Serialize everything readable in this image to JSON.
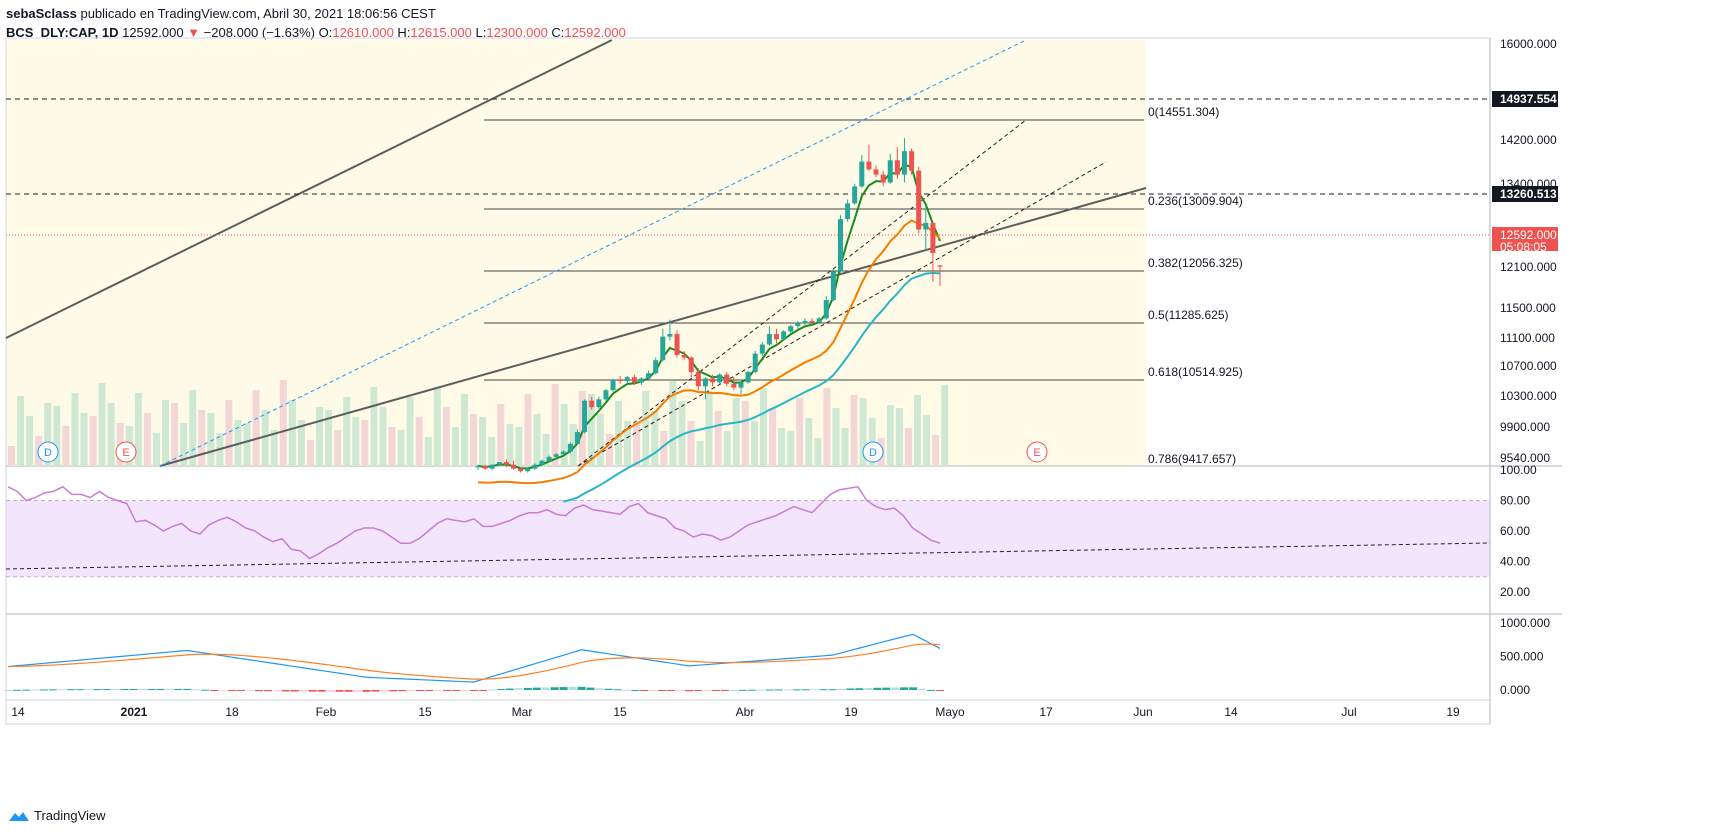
{
  "header": {
    "author": "sebaSclass",
    "published": "publicado en TradingView.com, Abril 30, 2021 18:06:56 CEST",
    "symbol": "BCS_DLY:CAP, 1D",
    "last": "12592.000",
    "change": "−208.000 (−1.63%)",
    "o_label": "O:",
    "o_value": "12610.000",
    "h_label": "H:",
    "h_value": "12615.000",
    "l_label": "L:",
    "l_value": "12300.000",
    "c_label": "C:",
    "c_value": "12592.000"
  },
  "footer": {
    "brand": "TradingView"
  },
  "colors": {
    "up": "#26a69a",
    "down": "#ef5350",
    "ema_short": "#1b8a1b",
    "ema_mid": "#f57c00",
    "ema_long": "#26b6c8",
    "rsi": "#c77dd6",
    "macd": "#2196f3",
    "signal": "#ff7f27"
  },
  "chart_data": [
    {
      "type": "candlestick",
      "price_axis_ticks": [
        "16000.000",
        "14200.000",
        "13400.000",
        "12100.000",
        "11500.000",
        "11100.000",
        "10700.000",
        "10300.000",
        "9900.000",
        "9540.000"
      ],
      "time_axis_ticks": [
        "14",
        "2021",
        "18",
        "Feb",
        "15",
        "Mar",
        "15",
        "Abr",
        "19",
        "Mayo",
        "17",
        "Jun",
        "14",
        "Jul",
        "19"
      ],
      "price_labels": [
        {
          "label": "14937.554",
          "style": "dark"
        },
        {
          "label": "13260.513",
          "style": "dark"
        },
        {
          "label": "12592.000",
          "style": "red"
        },
        {
          "label": "05:08:05",
          "style": "red"
        }
      ],
      "fib_levels": [
        {
          "ratio": "0",
          "price": "14551.304",
          "text": "0(14551.304)"
        },
        {
          "ratio": "0.236",
          "price": "13009.904",
          "text": "0.236(13009.904)"
        },
        {
          "ratio": "0.382",
          "price": "12056.325",
          "text": "0.382(12056.325)"
        },
        {
          "ratio": "0.5",
          "price": "11285.625",
          "text": "0.5(11285.625)"
        },
        {
          "ratio": "0.618",
          "price": "10514.925",
          "text": "0.618(10514.925)"
        },
        {
          "ratio": "0.786",
          "price": "9417.657",
          "text": "0.786(9417.657)"
        }
      ],
      "markers": [
        {
          "letter": "D",
          "color": "#2196f3"
        },
        {
          "letter": "E",
          "color": "#ef5350"
        },
        {
          "letter": "D",
          "color": "#2196f3"
        },
        {
          "letter": "E",
          "color": "#ef5350"
        }
      ],
      "candles": [
        [
          9520,
          9560,
          9480,
          9540
        ],
        [
          9540,
          9560,
          9480,
          9500
        ],
        [
          9500,
          9560,
          9480,
          9560
        ],
        [
          9560,
          9600,
          9540,
          9600
        ],
        [
          9600,
          9640,
          9520,
          9560
        ],
        [
          9560,
          9620,
          9480,
          9500
        ],
        [
          9500,
          9520,
          9440,
          9460
        ],
        [
          9460,
          9520,
          9440,
          9500
        ],
        [
          9500,
          9580,
          9480,
          9560
        ],
        [
          9560,
          9640,
          9540,
          9620
        ],
        [
          9620,
          9700,
          9600,
          9680
        ],
        [
          9680,
          9740,
          9640,
          9720
        ],
        [
          9720,
          9780,
          9700,
          9760
        ],
        [
          9760,
          9900,
          9740,
          9880
        ],
        [
          9880,
          10100,
          9860,
          10060
        ],
        [
          10060,
          10560,
          10040,
          10540
        ],
        [
          10540,
          10600,
          10400,
          10440
        ],
        [
          10440,
          10600,
          10420,
          10560
        ],
        [
          10560,
          10720,
          10540,
          10700
        ],
        [
          10700,
          10880,
          10680,
          10860
        ],
        [
          10860,
          10920,
          10800,
          10840
        ],
        [
          10840,
          10920,
          10780,
          10900
        ],
        [
          10900,
          10940,
          10780,
          10820
        ],
        [
          10820,
          10900,
          10780,
          10880
        ],
        [
          10880,
          11000,
          10860,
          10960
        ],
        [
          10960,
          11200,
          10940,
          11160
        ],
        [
          11160,
          11640,
          11140,
          11520
        ],
        [
          11520,
          11780,
          11460,
          11560
        ],
        [
          11560,
          11620,
          11200,
          11240
        ],
        [
          11240,
          11300,
          11160,
          11200
        ],
        [
          11200,
          11220,
          10900,
          10980
        ],
        [
          10980,
          11040,
          10700,
          10760
        ],
        [
          10760,
          10900,
          10560,
          10880
        ],
        [
          10880,
          10940,
          10760,
          10820
        ],
        [
          10820,
          10960,
          10800,
          10940
        ],
        [
          10940,
          10980,
          10760,
          10800
        ],
        [
          10800,
          10900,
          10700,
          10740
        ],
        [
          10740,
          10840,
          10640,
          10820
        ],
        [
          10820,
          11000,
          10800,
          10980
        ],
        [
          10980,
          11300,
          10960,
          11260
        ],
        [
          11260,
          11440,
          11220,
          11400
        ],
        [
          11400,
          11680,
          11380,
          11560
        ],
        [
          11560,
          11640,
          11420,
          11480
        ],
        [
          11480,
          11620,
          11460,
          11600
        ],
        [
          11600,
          11700,
          11560,
          11680
        ],
        [
          11680,
          11760,
          11640,
          11720
        ],
        [
          11720,
          11800,
          11680,
          11760
        ],
        [
          11760,
          11800,
          11700,
          11740
        ],
        [
          11740,
          11820,
          11720,
          11800
        ],
        [
          11800,
          12140,
          11780,
          12080
        ],
        [
          12080,
          12560,
          12060,
          12520
        ],
        [
          12520,
          13380,
          12500,
          13320
        ],
        [
          13320,
          13620,
          13280,
          13560
        ],
        [
          13560,
          13860,
          13540,
          13820
        ],
        [
          13820,
          14300,
          13800,
          14200
        ],
        [
          14200,
          14460,
          14060,
          14080
        ],
        [
          14080,
          14140,
          13960,
          14000
        ],
        [
          14000,
          14060,
          13820,
          13880
        ],
        [
          13880,
          14320,
          13860,
          14220
        ],
        [
          14220,
          14420,
          13940,
          14000
        ],
        [
          14000,
          14560,
          13880,
          14360
        ],
        [
          14360,
          14400,
          14000,
          14060
        ],
        [
          14060,
          14120,
          13100,
          13160
        ],
        [
          13160,
          13540,
          12840,
          13260
        ],
        [
          13260,
          13280,
          12360,
          12800
        ],
        [
          12610,
          12615,
          12300,
          12592
        ]
      ],
      "ema_short_approx": "follows recent closes (green)",
      "ema_mid_end": 12370,
      "ema_long_end": 11520
    },
    {
      "type": "line",
      "name": "RSI",
      "y_ticks": [
        "100.00",
        "80.00",
        "60.00",
        "40.00",
        "20.00"
      ],
      "band": [
        30,
        80
      ],
      "values": [
        89,
        86,
        80,
        82,
        85,
        86,
        89,
        84,
        84,
        82,
        86,
        82,
        80,
        78,
        66,
        67,
        64,
        60,
        63,
        65,
        60,
        58,
        64,
        67,
        69,
        66,
        62,
        60,
        56,
        53,
        55,
        48,
        47,
        42,
        45,
        49,
        52,
        56,
        60,
        62,
        62,
        60,
        56,
        52,
        52,
        55,
        60,
        65,
        68,
        67,
        66,
        68,
        63,
        63,
        65,
        67,
        70,
        72,
        72,
        74,
        71,
        70,
        75,
        77,
        74,
        73,
        72,
        71,
        76,
        78,
        72,
        70,
        68,
        62,
        60,
        56,
        58,
        57,
        54,
        56,
        60,
        64,
        66,
        68,
        70,
        73,
        76,
        74,
        72,
        78,
        84,
        87,
        88,
        89,
        80,
        76,
        74,
        75,
        70,
        62,
        58,
        54,
        52
      ]
    },
    {
      "type": "line",
      "name": "MACD",
      "y_ticks": [
        "1000.000",
        "500.000",
        "0.000"
      ]
    }
  ]
}
